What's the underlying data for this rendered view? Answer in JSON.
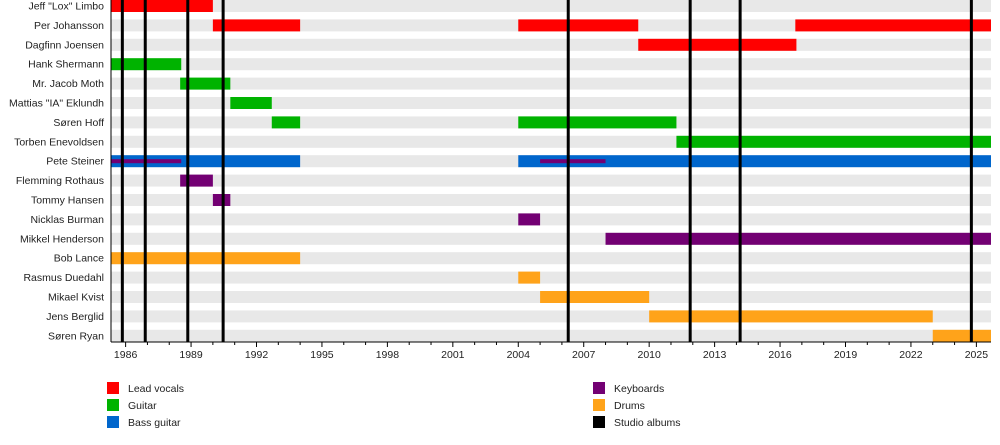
{
  "chart_data": {
    "type": "timeline",
    "title": "",
    "xlim": [
      1985.33,
      2025.67
    ],
    "x_ticks": [
      1986,
      1989,
      1992,
      1995,
      1998,
      2001,
      2004,
      2007,
      2010,
      2013,
      2016,
      2019,
      2022,
      2025
    ],
    "minor_ticks_every_year": true,
    "grid": "alternating row bands",
    "colors": {
      "Lead vocals": "#ff0000",
      "Guitar": "#00b300",
      "Bass guitar": "#0066cc",
      "Keyboards": "#730073",
      "Drums": "#ffa31a",
      "Studio albums": "#000000"
    },
    "members": [
      {
        "name": "Jeff \"Lox\" Limbo",
        "bars": [
          {
            "role": "Lead vocals",
            "from": 1985.33,
            "to": 1990.0
          }
        ]
      },
      {
        "name": "Per Johansson",
        "bars": [
          {
            "role": "Lead vocals",
            "from": 1990.0,
            "to": 1994.0
          },
          {
            "role": "Lead vocals",
            "from": 2004.0,
            "to": 2009.5
          },
          {
            "role": "Lead vocals",
            "from": 2016.7,
            "to": null
          }
        ]
      },
      {
        "name": "Dagfinn Joensen",
        "bars": [
          {
            "role": "Lead vocals",
            "from": 2009.5,
            "to": 2016.75
          }
        ]
      },
      {
        "name": "Hank Shermann",
        "bars": [
          {
            "role": "Guitar",
            "from": 1985.33,
            "to": 1988.55
          }
        ]
      },
      {
        "name": "Mr. Jacob Moth",
        "bars": [
          {
            "role": "Guitar",
            "from": 1988.5,
            "to": 1990.8
          }
        ]
      },
      {
        "name": "Mattias \"IA\" Eklundh",
        "bars": [
          {
            "role": "Guitar",
            "from": 1990.8,
            "to": 1992.7
          }
        ]
      },
      {
        "name": "Søren Hoff",
        "bars": [
          {
            "role": "Guitar",
            "from": 1992.7,
            "to": 1994.0
          },
          {
            "role": "Guitar",
            "from": 2004.0,
            "to": 2011.25
          }
        ]
      },
      {
        "name": "Torben Enevoldsen",
        "bars": [
          {
            "role": "Guitar",
            "from": 2011.25,
            "to": null
          }
        ]
      },
      {
        "name": "Pete Steiner",
        "bars": [
          {
            "role": "Bass guitar",
            "from": 1985.33,
            "to": 1994.0
          },
          {
            "role": "Bass guitar",
            "from": 2004.0,
            "to": null
          }
        ],
        "secondary": [
          {
            "role": "Keyboards",
            "from": 1985.33,
            "to": 1988.55
          },
          {
            "role": "Keyboards",
            "from": 2005.0,
            "to": 2008.0
          }
        ]
      },
      {
        "name": "Flemming Rothaus",
        "bars": [
          {
            "role": "Keyboards",
            "from": 1988.5,
            "to": 1990.0
          }
        ]
      },
      {
        "name": "Tommy Hansen",
        "bars": [
          {
            "role": "Keyboards",
            "from": 1990.0,
            "to": 1990.8
          }
        ]
      },
      {
        "name": "Nicklas Burman",
        "bars": [
          {
            "role": "Keyboards",
            "from": 2004.0,
            "to": 2005.0
          }
        ]
      },
      {
        "name": "Mikkel Henderson",
        "bars": [
          {
            "role": "Keyboards",
            "from": 2008.0,
            "to": null
          }
        ]
      },
      {
        "name": "Bob Lance",
        "bars": [
          {
            "role": "Drums",
            "from": 1985.33,
            "to": 1994.0
          }
        ]
      },
      {
        "name": "Rasmus Duedahl",
        "bars": [
          {
            "role": "Drums",
            "from": 2004.0,
            "to": 2005.0
          }
        ]
      },
      {
        "name": "Mikael Kvist",
        "bars": [
          {
            "role": "Drums",
            "from": 2005.0,
            "to": 2010.0
          }
        ]
      },
      {
        "name": "Jens Berglid",
        "bars": [
          {
            "role": "Drums",
            "from": 2010.0,
            "to": 2023.0
          }
        ]
      },
      {
        "name": "Søren Ryan",
        "bars": [
          {
            "role": "Drums",
            "from": 2023.0,
            "to": null
          }
        ]
      }
    ],
    "studio_albums": [
      1985.85,
      1986.9,
      1988.85,
      1990.47,
      2006.29,
      2011.88,
      2014.17,
      2024.77
    ],
    "legend": {
      "placement": "bottom",
      "items": [
        "Lead vocals",
        "Guitar",
        "Bass guitar",
        "Keyboards",
        "Drums",
        "Studio albums"
      ]
    }
  }
}
